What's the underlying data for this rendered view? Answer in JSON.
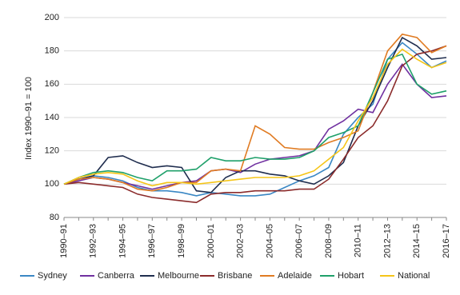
{
  "chart_data": {
    "type": "line",
    "ylabel": "Index 1990–91 = 100",
    "categories": [
      "1990–91",
      null,
      "1992–93",
      null,
      "1994–95",
      null,
      "1996–97",
      null,
      "1998–99",
      null,
      "2000–01",
      null,
      "2002–03",
      null,
      "2004–05",
      null,
      "2006–07",
      null,
      "2008–09",
      null,
      "2010–11",
      null,
      "2012–13",
      null,
      "2014–15",
      null,
      "2016–17"
    ],
    "series": [
      {
        "name": "Sydney",
        "color": "#3a87c4",
        "values": [
          100,
          103,
          105,
          104,
          102,
          98,
          96,
          96,
          95,
          93,
          95,
          94,
          93,
          93,
          94,
          98,
          102,
          105,
          110,
          130,
          140,
          148,
          175,
          185,
          178,
          170,
          174
        ]
      },
      {
        "name": "Canberra",
        "color": "#7030a0",
        "values": [
          100,
          102,
          104,
          103,
          101,
          99,
          97,
          99,
          101,
          102,
          108,
          109,
          107,
          112,
          115,
          116,
          117,
          120,
          133,
          138,
          145,
          143,
          160,
          172,
          160,
          152,
          153
        ]
      },
      {
        "name": "Melbourne",
        "color": "#1f2d4e",
        "values": [
          100,
          103,
          105,
          116,
          117,
          113,
          110,
          111,
          110,
          96,
          95,
          104,
          108,
          108,
          106,
          105,
          102,
          100,
          105,
          113,
          135,
          150,
          170,
          188,
          183,
          175,
          176
        ]
      },
      {
        "name": "Brisbane",
        "color": "#8b2b2b",
        "values": [
          100,
          101,
          100,
          99,
          98,
          94,
          92,
          91,
          90,
          89,
          94,
          95,
          95,
          96,
          96,
          96,
          97,
          97,
          103,
          115,
          128,
          135,
          150,
          171,
          178,
          180,
          183
        ]
      },
      {
        "name": "Adelaide",
        "color": "#e07b22",
        "values": [
          100,
          103,
          104,
          103,
          101,
          97,
          96,
          98,
          101,
          101,
          108,
          109,
          108,
          135,
          130,
          122,
          121,
          121,
          125,
          128,
          132,
          155,
          180,
          190,
          188,
          179,
          183
        ]
      },
      {
        "name": "Hobart",
        "color": "#1fa06a",
        "values": [
          100,
          104,
          107,
          108,
          107,
          104,
          102,
          108,
          108,
          109,
          116,
          114,
          114,
          116,
          115,
          115,
          116,
          120,
          128,
          131,
          135,
          155,
          175,
          178,
          160,
          154,
          156
        ]
      },
      {
        "name": "National",
        "color": "#f5c518",
        "values": [
          100,
          104,
          106,
          107,
          106,
          102,
          99,
          101,
          101,
          100,
          101,
          102,
          103,
          104,
          104,
          104,
          105,
          108,
          115,
          122,
          138,
          152,
          172,
          181,
          175,
          170,
          173
        ]
      }
    ],
    "ylim": [
      80,
      200
    ],
    "yticks": [
      80,
      100,
      120,
      140,
      160,
      180,
      200
    ],
    "grid": true,
    "legend": "bottom"
  }
}
